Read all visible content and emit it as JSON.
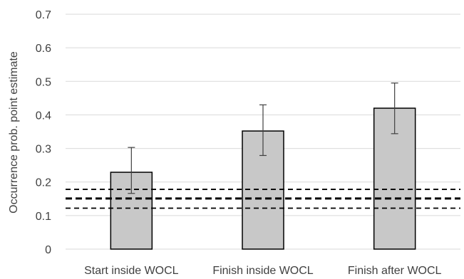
{
  "chart_data": {
    "type": "bar",
    "title": "",
    "xlabel": "",
    "ylabel": "Occurrence prob. point estimate",
    "ylim": [
      0,
      0.7
    ],
    "yticks": [
      0,
      0.1,
      0.2,
      0.3,
      0.4,
      0.5,
      0.6,
      0.7
    ],
    "ytick_labels": [
      "0",
      "0.1",
      "0.2",
      "0.3",
      "0.4",
      "0.5",
      "0.6",
      "0.7"
    ],
    "grid": "horizontal",
    "legend": "none",
    "categories": [
      "Start inside WOCL",
      "Finish inside WOCL",
      "Finish after WOCL"
    ],
    "values": [
      0.229,
      0.352,
      0.42
    ],
    "error_bars": [
      {
        "low": 0.166,
        "high": 0.303
      },
      {
        "low": 0.279,
        "high": 0.43
      },
      {
        "low": 0.344,
        "high": 0.495
      }
    ],
    "reference_lines": [
      {
        "value": 0.151,
        "style": "dashed",
        "weight": "heavy"
      },
      {
        "value": 0.178,
        "style": "dashed",
        "weight": "normal"
      },
      {
        "value": 0.122,
        "style": "dashed",
        "weight": "normal"
      }
    ],
    "colors": {
      "bar_fill": "#c8c8c8",
      "bar_stroke": "#000000",
      "grid": "#d9d9d9",
      "error_bar": "#404040",
      "reference_line": "#000000",
      "text": "#404040"
    }
  }
}
